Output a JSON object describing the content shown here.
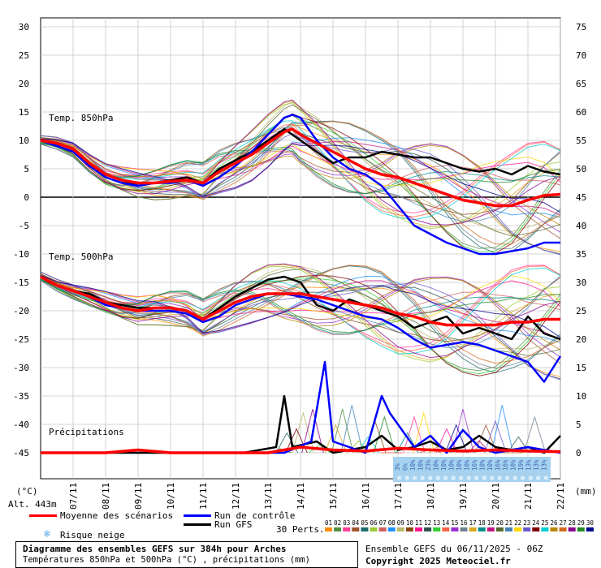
{
  "chart_data": {
    "type": "line",
    "title": "Diagramme des ensembles GEFS sur 384h pour Arches",
    "subtitle": "Températures 850hPa et 500hPa (°C) , précipitations (mm)",
    "x_dates": [
      "07/11",
      "08/11",
      "09/11",
      "10/11",
      "11/11",
      "12/11",
      "13/11",
      "14/11",
      "15/11",
      "16/11",
      "17/11",
      "18/11",
      "19/11",
      "20/11",
      "21/11",
      "22/11"
    ],
    "x_hours_range": [
      0,
      384
    ],
    "y_left_ticks": [
      30,
      25,
      20,
      15,
      10,
      5,
      0,
      -5,
      -10,
      -15,
      -20,
      -25,
      -30,
      -35,
      -40,
      -45
    ],
    "y_right_ticks": [
      75,
      70,
      65,
      60,
      55,
      50,
      45,
      40,
      35,
      30,
      25,
      20,
      15,
      10,
      5,
      0
    ],
    "y_left_range": [
      -45,
      30
    ],
    "y_right_range": [
      0,
      75
    ],
    "y_left_unit": "(°C)",
    "y_right_unit": "(mm)",
    "altitude": "Alt. 443m",
    "panel_labels": {
      "t850": "Temp. 850hPa",
      "t500": "Temp. 500hPa",
      "precip": "Précipitations"
    },
    "series": [
      {
        "name": "Moyenne des scénarios",
        "panel": "t850",
        "color": "#ff0000",
        "values": [
          [
            0,
            10
          ],
          [
            12,
            9.5
          ],
          [
            24,
            8.5
          ],
          [
            36,
            6
          ],
          [
            48,
            4
          ],
          [
            60,
            3
          ],
          [
            72,
            2.5
          ],
          [
            84,
            2.5
          ],
          [
            96,
            2.8
          ],
          [
            108,
            3
          ],
          [
            120,
            2.5
          ],
          [
            132,
            4.5
          ],
          [
            144,
            6
          ],
          [
            156,
            7.5
          ],
          [
            168,
            9.5
          ],
          [
            180,
            11.5
          ],
          [
            186,
            12
          ],
          [
            192,
            11
          ],
          [
            204,
            9.5
          ],
          [
            216,
            8
          ],
          [
            228,
            6.5
          ],
          [
            240,
            5
          ],
          [
            252,
            4
          ],
          [
            264,
            3.5
          ],
          [
            276,
            2.5
          ],
          [
            288,
            1.5
          ],
          [
            300,
            0.5
          ],
          [
            312,
            -0.5
          ],
          [
            324,
            -1
          ],
          [
            336,
            -1.5
          ],
          [
            348,
            -1.5
          ],
          [
            360,
            -0.5
          ],
          [
            372,
            0.3
          ],
          [
            384,
            0.5
          ]
        ]
      },
      {
        "name": "Run de contrôle",
        "panel": "t850",
        "color": "#0000ff",
        "values": [
          [
            0,
            10
          ],
          [
            12,
            9
          ],
          [
            24,
            8
          ],
          [
            36,
            5.5
          ],
          [
            48,
            3.5
          ],
          [
            60,
            2.5
          ],
          [
            72,
            2
          ],
          [
            84,
            2.5
          ],
          [
            96,
            2.5
          ],
          [
            108,
            3
          ],
          [
            120,
            2
          ],
          [
            132,
            3.5
          ],
          [
            144,
            5.5
          ],
          [
            156,
            8
          ],
          [
            168,
            11
          ],
          [
            180,
            14
          ],
          [
            186,
            14.5
          ],
          [
            192,
            14
          ],
          [
            204,
            10
          ],
          [
            216,
            7
          ],
          [
            228,
            5
          ],
          [
            240,
            4
          ],
          [
            252,
            2
          ],
          [
            264,
            -1.5
          ],
          [
            276,
            -5
          ],
          [
            288,
            -6.5
          ],
          [
            300,
            -8
          ],
          [
            312,
            -9
          ],
          [
            324,
            -10
          ],
          [
            336,
            -10
          ],
          [
            348,
            -9.5
          ],
          [
            360,
            -9
          ],
          [
            372,
            -8
          ],
          [
            384,
            -8
          ]
        ]
      },
      {
        "name": "Run GFS",
        "panel": "t850",
        "color": "#000000",
        "values": [
          [
            0,
            10
          ],
          [
            12,
            9
          ],
          [
            24,
            8
          ],
          [
            36,
            6
          ],
          [
            48,
            4
          ],
          [
            60,
            3
          ],
          [
            72,
            2
          ],
          [
            84,
            2.5
          ],
          [
            96,
            3
          ],
          [
            108,
            3.5
          ],
          [
            120,
            2.5
          ],
          [
            132,
            5
          ],
          [
            144,
            6.5
          ],
          [
            156,
            8
          ],
          [
            168,
            10
          ],
          [
            180,
            12
          ],
          [
            192,
            10
          ],
          [
            204,
            8
          ],
          [
            216,
            6
          ],
          [
            228,
            7
          ],
          [
            240,
            7
          ],
          [
            252,
            8
          ],
          [
            264,
            7.5
          ],
          [
            276,
            7
          ],
          [
            288,
            7
          ],
          [
            300,
            6
          ],
          [
            312,
            5
          ],
          [
            324,
            4.5
          ],
          [
            336,
            5
          ],
          [
            348,
            4
          ],
          [
            360,
            5.5
          ],
          [
            372,
            4.5
          ],
          [
            384,
            4
          ]
        ]
      },
      {
        "name": "Moyenne des scénarios",
        "panel": "t500",
        "color": "#ff0000",
        "values": [
          [
            0,
            -14
          ],
          [
            12,
            -15.5
          ],
          [
            24,
            -16.5
          ],
          [
            36,
            -17.5
          ],
          [
            48,
            -18.5
          ],
          [
            60,
            -19.5
          ],
          [
            72,
            -20
          ],
          [
            84,
            -19.5
          ],
          [
            96,
            -19.5
          ],
          [
            108,
            -20
          ],
          [
            120,
            -21.5
          ],
          [
            132,
            -20
          ],
          [
            144,
            -18.5
          ],
          [
            156,
            -17.5
          ],
          [
            168,
            -17
          ],
          [
            180,
            -17
          ],
          [
            192,
            -17
          ],
          [
            204,
            -17.5
          ],
          [
            216,
            -18
          ],
          [
            228,
            -18.5
          ],
          [
            240,
            -19
          ],
          [
            252,
            -19.5
          ],
          [
            264,
            -20.5
          ],
          [
            276,
            -21
          ],
          [
            288,
            -22
          ],
          [
            300,
            -22.5
          ],
          [
            312,
            -22.5
          ],
          [
            324,
            -22.5
          ],
          [
            336,
            -22.5
          ],
          [
            348,
            -22
          ],
          [
            360,
            -22
          ],
          [
            372,
            -21.5
          ],
          [
            384,
            -21.5
          ]
        ]
      },
      {
        "name": "Run de contrôle",
        "panel": "t500",
        "color": "#0000ff",
        "values": [
          [
            0,
            -14
          ],
          [
            12,
            -15.5
          ],
          [
            24,
            -16.5
          ],
          [
            36,
            -17.5
          ],
          [
            48,
            -19
          ],
          [
            60,
            -19.5
          ],
          [
            72,
            -20
          ],
          [
            84,
            -20
          ],
          [
            96,
            -20
          ],
          [
            108,
            -20.5
          ],
          [
            120,
            -22
          ],
          [
            132,
            -21
          ],
          [
            144,
            -19
          ],
          [
            156,
            -18
          ],
          [
            168,
            -17
          ],
          [
            180,
            -17
          ],
          [
            192,
            -17.5
          ],
          [
            204,
            -18
          ],
          [
            216,
            -19
          ],
          [
            228,
            -20
          ],
          [
            240,
            -21
          ],
          [
            252,
            -21.5
          ],
          [
            264,
            -23
          ],
          [
            276,
            -25
          ],
          [
            288,
            -26.5
          ],
          [
            300,
            -26
          ],
          [
            312,
            -25.5
          ],
          [
            324,
            -26
          ],
          [
            336,
            -27
          ],
          [
            348,
            -28
          ],
          [
            360,
            -29
          ],
          [
            372,
            -32.5
          ],
          [
            384,
            -28
          ]
        ]
      },
      {
        "name": "Run GFS",
        "panel": "t500",
        "color": "#000000",
        "values": [
          [
            0,
            -14
          ],
          [
            12,
            -15.5
          ],
          [
            24,
            -16.5
          ],
          [
            36,
            -17
          ],
          [
            48,
            -18.5
          ],
          [
            60,
            -19
          ],
          [
            72,
            -19.5
          ],
          [
            84,
            -19.5
          ],
          [
            96,
            -19.5
          ],
          [
            108,
            -20
          ],
          [
            120,
            -21.5
          ],
          [
            132,
            -19.5
          ],
          [
            144,
            -17.5
          ],
          [
            156,
            -16
          ],
          [
            168,
            -14.5
          ],
          [
            180,
            -14
          ],
          [
            192,
            -15
          ],
          [
            204,
            -19
          ],
          [
            216,
            -20
          ],
          [
            228,
            -18
          ],
          [
            240,
            -19
          ],
          [
            252,
            -20
          ],
          [
            264,
            -21
          ],
          [
            276,
            -23
          ],
          [
            288,
            -22
          ],
          [
            300,
            -21
          ],
          [
            312,
            -24
          ],
          [
            324,
            -23
          ],
          [
            336,
            -24
          ],
          [
            348,
            -25
          ],
          [
            360,
            -21
          ],
          [
            372,
            -24
          ],
          [
            384,
            -25
          ]
        ]
      },
      {
        "name": "Moyenne des scénarios",
        "panel": "precip",
        "color": "#ff0000",
        "values": [
          [
            0,
            0
          ],
          [
            48,
            0
          ],
          [
            72,
            0.5
          ],
          [
            96,
            0
          ],
          [
            168,
            0
          ],
          [
            192,
            1
          ],
          [
            216,
            0.5
          ],
          [
            240,
            0.3
          ],
          [
            264,
            0.8
          ],
          [
            288,
            0.5
          ],
          [
            312,
            0.3
          ],
          [
            336,
            0.5
          ],
          [
            360,
            0.3
          ],
          [
            384,
            0.2
          ]
        ]
      },
      {
        "name": "Run de contrôle",
        "panel": "precip",
        "color": "#0000ff",
        "values": [
          [
            0,
            0
          ],
          [
            48,
            0
          ],
          [
            72,
            0.5
          ],
          [
            96,
            0
          ],
          [
            180,
            0
          ],
          [
            200,
            2
          ],
          [
            210,
            16
          ],
          [
            216,
            2
          ],
          [
            240,
            0
          ],
          [
            252,
            10
          ],
          [
            258,
            7
          ],
          [
            264,
            5
          ],
          [
            276,
            1
          ],
          [
            288,
            3
          ],
          [
            300,
            0
          ],
          [
            312,
            4
          ],
          [
            324,
            1
          ],
          [
            336,
            0
          ],
          [
            360,
            1
          ],
          [
            384,
            0
          ]
        ]
      },
      {
        "name": "Run GFS",
        "panel": "precip",
        "color": "#000000",
        "values": [
          [
            0,
            0
          ],
          [
            150,
            0
          ],
          [
            174,
            1
          ],
          [
            180,
            10
          ],
          [
            186,
            1
          ],
          [
            204,
            2
          ],
          [
            216,
            0
          ],
          [
            240,
            1
          ],
          [
            252,
            3
          ],
          [
            264,
            0.5
          ],
          [
            276,
            1
          ],
          [
            288,
            2
          ],
          [
            300,
            0.5
          ],
          [
            312,
            1
          ],
          [
            324,
            3
          ],
          [
            336,
            1
          ],
          [
            348,
            0.5
          ],
          [
            360,
            1
          ],
          [
            372,
            0
          ],
          [
            384,
            3
          ]
        ]
      }
    ],
    "snow_risk_percent": [
      "3%",
      "6%",
      "10%",
      "10%",
      "23%",
      "10%",
      "10%",
      "10%",
      "10%",
      "10%",
      "16%",
      "10%",
      "10%",
      "16%",
      "16%",
      "10%",
      "19%",
      "13%",
      "13%",
      "13%"
    ],
    "perturbations": [
      "01",
      "02",
      "03",
      "04",
      "05",
      "06",
      "07",
      "08",
      "09",
      "10",
      "11",
      "12",
      "13",
      "14",
      "15",
      "16",
      "17",
      "18",
      "19",
      "20",
      "21",
      "22",
      "23",
      "24",
      "25",
      "26",
      "27",
      "28",
      "29",
      "30"
    ],
    "pert_colors": [
      "#ff8c00",
      "#4f8f3f",
      "#ff3e96",
      "#a0522d",
      "#1e6b6b",
      "#9acd32",
      "#cd5c5c",
      "#1e90ff",
      "#bdb76b",
      "#8b4513",
      "#ff1493",
      "#2f4f4f",
      "#32cd32",
      "#ff6347",
      "#9932cc",
      "#708090",
      "#daa520",
      "#008b8b",
      "#c71585",
      "#556b2f",
      "#4682b4",
      "#ffd700",
      "#6a5acd",
      "#800000",
      "#00ced1",
      "#b8860b",
      "#d2691e",
      "#8b008b",
      "#228b22",
      "#00008b"
    ]
  },
  "legend": {
    "mean": "Moyenne des scénarios",
    "control": "Run de contrôle",
    "gfs": "Run GFS",
    "snow": "Risque neige",
    "perts_label": "30 Perts."
  },
  "footer": {
    "title": "Diagramme des ensembles GEFS sur 384h pour Arches",
    "subtitle": "Températures 850hPa et 500hPa (°C) , précipitations (mm)",
    "run": "Ensemble GEFS du 06/11/2025 - 06Z",
    "copyright": "Copyright 2025 Meteociel.fr"
  },
  "colors": {
    "mean": "#ff0000",
    "control": "#0000ff",
    "gfs": "#000000",
    "snow": "#5aa9e6",
    "snow_box": "#a6d2f0"
  }
}
